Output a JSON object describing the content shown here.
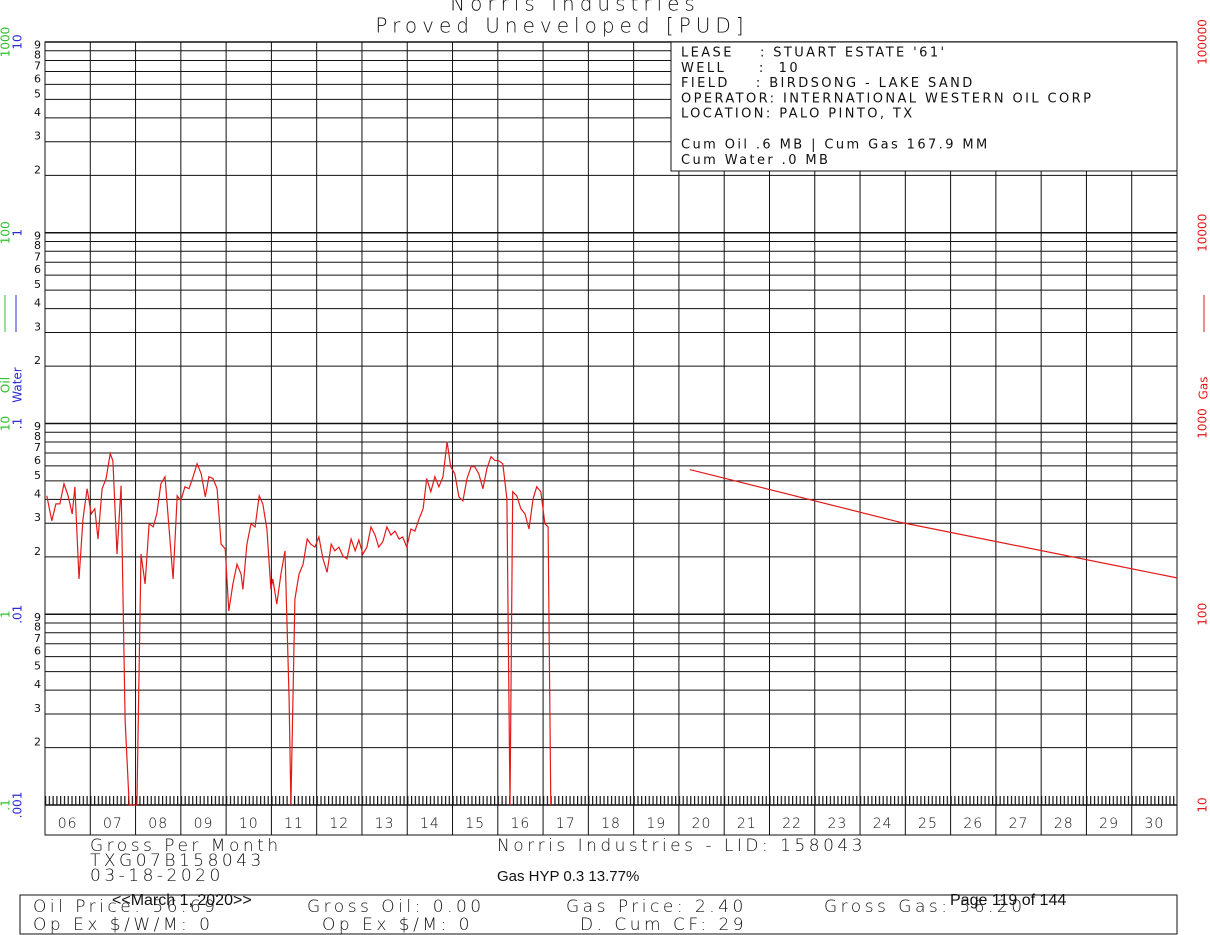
{
  "title": "Norris Industries",
  "subtitle": "Proved Uneveloped [PUD]",
  "info_box": {
    "lines": [
      "LEASE    : STUART ESTATE '61'",
      "WELL     :  10",
      "FIELD    : BIRDSONG - LAKE SAND",
      "OPERATOR: INTERNATIONAL WESTERN OIL CORP",
      "LOCATION: PALO PINTO, TX"
    ],
    "cum_lines": [
      "Cum Oil .6 MB | Cum Gas 167.9 MM",
      "Cum Water .0 MB"
    ]
  },
  "chart_data": {
    "type": "line",
    "log_scale": true,
    "grid": true,
    "xlim": [
      6,
      31
    ],
    "xticks": [
      {
        "value": 6,
        "label": "06"
      },
      {
        "value": 7,
        "label": "07"
      },
      {
        "value": 8,
        "label": "08"
      },
      {
        "value": 9,
        "label": "09"
      },
      10,
      11,
      12,
      13,
      14,
      15,
      16,
      17,
      18,
      19,
      20,
      21,
      22,
      23,
      24,
      25,
      26,
      27,
      28,
      29,
      30
    ],
    "ylim": [
      10,
      100000
    ],
    "yticks": [
      10,
      100,
      1000,
      10000,
      100000
    ],
    "y_label": "Gas",
    "oil_lim": [
      0.1,
      1000
    ],
    "oil_ticks": [
      {
        "value": 0.1,
        "label": ".1"
      },
      1,
      10,
      100,
      1000
    ],
    "oil_label": "Oil",
    "oil_color": "#2fbf2f",
    "water_lim": [
      0.001,
      10
    ],
    "water_ticks": [
      {
        "value": 0.001,
        "label": ".001"
      },
      {
        "value": 0.01,
        "label": ".01"
      },
      {
        "value": 0.1,
        "label": ".1"
      },
      1,
      10
    ],
    "water_label": "Water",
    "water_color": "#2b2bd6",
    "minor_ticks": [
      2,
      3,
      4,
      5,
      6,
      7,
      8,
      9
    ],
    "series": [
      {
        "name": "Gas",
        "color": "#e31a1a",
        "x": [
          6.04,
          6.15,
          6.24,
          6.33,
          6.42,
          6.51,
          6.6,
          6.66,
          6.75,
          6.84,
          6.93,
          7.02,
          7.1,
          7.17,
          7.26,
          7.35,
          7.44,
          7.5,
          7.59,
          7.68,
          7.77,
          7.86,
          8.03,
          8.12,
          8.21,
          8.3,
          8.39,
          8.47,
          8.56,
          8.65,
          8.74,
          8.83,
          8.92,
          9.0,
          9.09,
          9.18,
          9.27,
          9.36,
          9.45,
          9.54,
          9.62,
          9.71,
          9.8,
          9.89,
          9.98,
          10.06,
          10.15,
          10.24,
          10.33,
          10.37,
          10.46,
          10.55,
          10.64,
          10.73,
          10.81,
          10.9,
          10.99,
          11.03,
          11.12,
          11.21,
          11.3,
          11.39,
          11.43,
          11.52,
          11.61,
          11.7,
          11.79,
          11.87,
          11.96,
          12.05,
          12.14,
          12.23,
          12.32,
          12.4,
          12.49,
          12.58,
          12.67,
          12.76,
          12.85,
          12.93,
          13.02,
          13.11,
          13.2,
          13.29,
          13.37,
          13.46,
          13.55,
          13.64,
          13.73,
          13.82,
          13.9,
          13.99,
          14.08,
          14.17,
          14.26,
          14.35,
          14.43,
          14.52,
          14.61,
          14.7,
          14.79,
          14.88,
          14.96,
          15.05,
          15.14,
          15.23,
          15.32,
          15.41,
          15.49,
          15.58,
          15.67,
          15.76,
          15.85,
          15.94,
          16.02,
          16.11,
          16.2,
          16.27,
          16.33,
          16.42,
          16.51,
          16.6,
          16.69,
          16.78,
          16.86,
          16.95,
          17.04,
          17.11,
          17.17,
          18.5,
          20.24,
          24.9,
          31.0
        ],
        "values": [
          418,
          309,
          379,
          379,
          483,
          418,
          336,
          466,
          153,
          316,
          455,
          336,
          357,
          248,
          455,
          514,
          695,
          638,
          207,
          472,
          28,
          10,
          10,
          207,
          144,
          298,
          287,
          336,
          483,
          526,
          280,
          153,
          418,
          393,
          466,
          455,
          526,
          615,
          545,
          413,
          526,
          514,
          455,
          233,
          220,
          104,
          144,
          183,
          162,
          135,
          233,
          298,
          287,
          418,
          379,
          280,
          135,
          153,
          113,
          162,
          215,
          36,
          10,
          120,
          162,
          183,
          248,
          233,
          225,
          254,
          195,
          166,
          233,
          215,
          225,
          202,
          195,
          248,
          215,
          245,
          207,
          225,
          287,
          260,
          225,
          240,
          287,
          260,
          273,
          248,
          254,
          225,
          280,
          273,
          316,
          357,
          514,
          439,
          526,
          466,
          526,
          804,
          594,
          545,
          413,
          393,
          514,
          594,
          594,
          545,
          455,
          580,
          670,
          638,
          638,
          615,
          403,
          10,
          439,
          418,
          357,
          336,
          280,
          403,
          466,
          439,
          298,
          287,
          10,
          null,
          573,
          303,
          155
        ]
      }
    ]
  },
  "footer": {
    "left": [
      "Gross Per Month",
      "TXG07B158043",
      "03-18-2020"
    ],
    "center": "Norris Industries - LID: 158043",
    "model": "Gas HYP 0.3 13.77%",
    "row1": [
      "Oil Price: 56.69",
      "Gross Oil: 0.00",
      "Gas Price: 2.40",
      "Gross Gas: 56.20"
    ],
    "row2": [
      "Op Ex $/W/M: 0",
      "Op Ex $/M: 0",
      "D. Cum CF: 29"
    ],
    "date": "<<March 1, 2020>>",
    "page": "Page 119 of 144"
  }
}
